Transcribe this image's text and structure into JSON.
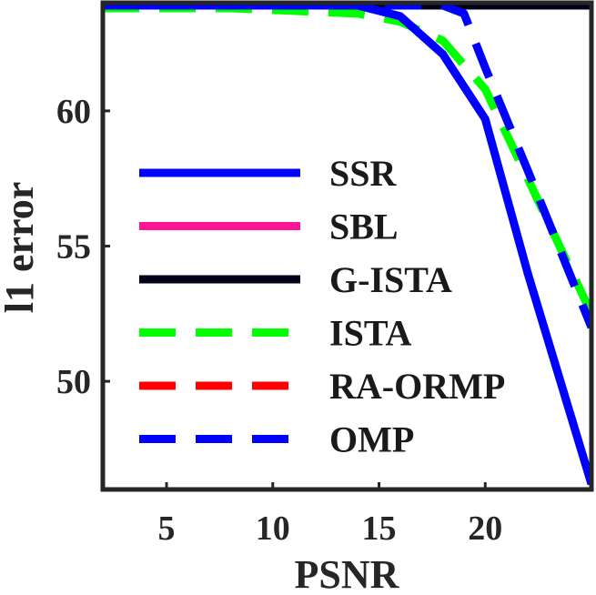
{
  "chart_data": {
    "type": "line",
    "title": "",
    "xlabel": "PSNR",
    "ylabel": "l1 error",
    "xlim": [
      2,
      25
    ],
    "ylim": [
      46,
      64
    ],
    "xticks": [
      5,
      10,
      15,
      20
    ],
    "yticks": [
      50,
      55,
      60
    ],
    "xtick_labels": [
      "5",
      "10",
      "15",
      "20"
    ],
    "ytick_labels": [
      "50",
      "55",
      "60"
    ],
    "legend_position": "inside-left",
    "series": [
      {
        "name": "SSR",
        "color": "#0000ff",
        "dash": "solid",
        "x": [
          2,
          5,
          8,
          11,
          14,
          16,
          18,
          20,
          22,
          25
        ],
        "y": [
          63.9,
          63.9,
          63.9,
          63.9,
          63.9,
          63.5,
          62.1,
          59.7,
          54.0,
          46.2
        ]
      },
      {
        "name": "SBL",
        "color": "#ff1493",
        "dash": "solid",
        "x": [
          2,
          25
        ],
        "y": [
          63.9,
          63.9
        ]
      },
      {
        "name": "G-ISTA",
        "color": "#00001a",
        "dash": "solid",
        "x": [
          2,
          25
        ],
        "y": [
          63.9,
          63.9
        ]
      },
      {
        "name": "ISTA",
        "color": "#00ff00",
        "dash": "dashed",
        "x": [
          2,
          5,
          8,
          11,
          14,
          16,
          18,
          20,
          22,
          25
        ],
        "y": [
          63.8,
          63.8,
          63.8,
          63.7,
          63.6,
          63.3,
          62.6,
          60.8,
          57.5,
          52.5
        ]
      },
      {
        "name": "RA-ORMP",
        "color": "#ff0000",
        "dash": "dashed",
        "x": [
          2,
          25
        ],
        "y": [
          63.9,
          63.9
        ]
      },
      {
        "name": "OMP",
        "color": "#0000ff",
        "dash": "dashed",
        "x": [
          2,
          5,
          8,
          11,
          14,
          16,
          18,
          19,
          20,
          22,
          25
        ],
        "y": [
          63.9,
          63.9,
          63.9,
          63.9,
          63.9,
          63.9,
          63.9,
          63.6,
          61.6,
          57.8,
          52.0
        ]
      }
    ]
  }
}
